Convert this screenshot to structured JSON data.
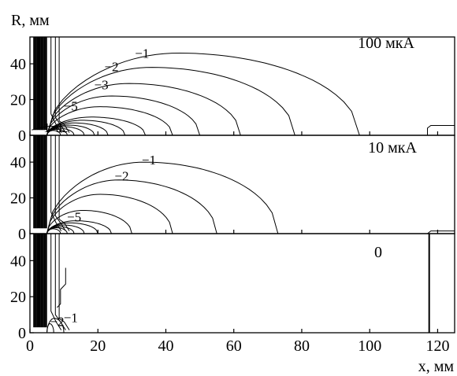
{
  "chart_data": {
    "type": "contour",
    "xlabel": "x, мм",
    "ylabel": "R, мм",
    "xlim": [
      0,
      125
    ],
    "ylim": [
      0,
      55
    ],
    "x_ticks": [
      0,
      20,
      40,
      60,
      80,
      100,
      120
    ],
    "y_ticks": [
      0,
      20,
      40
    ],
    "panels": [
      {
        "label": "100 мкА",
        "contour_labels": [
          "−1",
          "−2",
          "−3",
          "−5",
          "1",
          "1"
        ],
        "contours": [
          {
            "level": "−1",
            "x_extent": 97,
            "r_peak": 46
          },
          {
            "level": "−2",
            "x_extent": 78,
            "r_peak": 38
          },
          {
            "level": "−3",
            "x_extent": 62,
            "r_peak": 29
          },
          {
            "level": "−4",
            "x_extent": 50,
            "r_peak": 22
          },
          {
            "level": "−5",
            "x_extent": 42,
            "r_peak": 16
          }
        ]
      },
      {
        "label": "10 мкА",
        "contour_labels": [
          "−1",
          "−2",
          "−5"
        ],
        "contours": [
          {
            "level": "−1",
            "x_extent": 73,
            "r_peak": 40
          },
          {
            "level": "−2",
            "x_extent": 55,
            "r_peak": 30
          },
          {
            "level": "−3",
            "x_extent": 42,
            "r_peak": 22
          },
          {
            "level": "−5",
            "x_extent": 30,
            "r_peak": 13
          }
        ]
      },
      {
        "label": "0",
        "contour_labels": [
          "−2",
          "−1"
        ],
        "contours": [
          {
            "level": "−1",
            "x_extent": 10,
            "r_peak": 8
          },
          {
            "level": "−2",
            "x_extent": 7,
            "r_peak": 5
          }
        ]
      }
    ]
  }
}
